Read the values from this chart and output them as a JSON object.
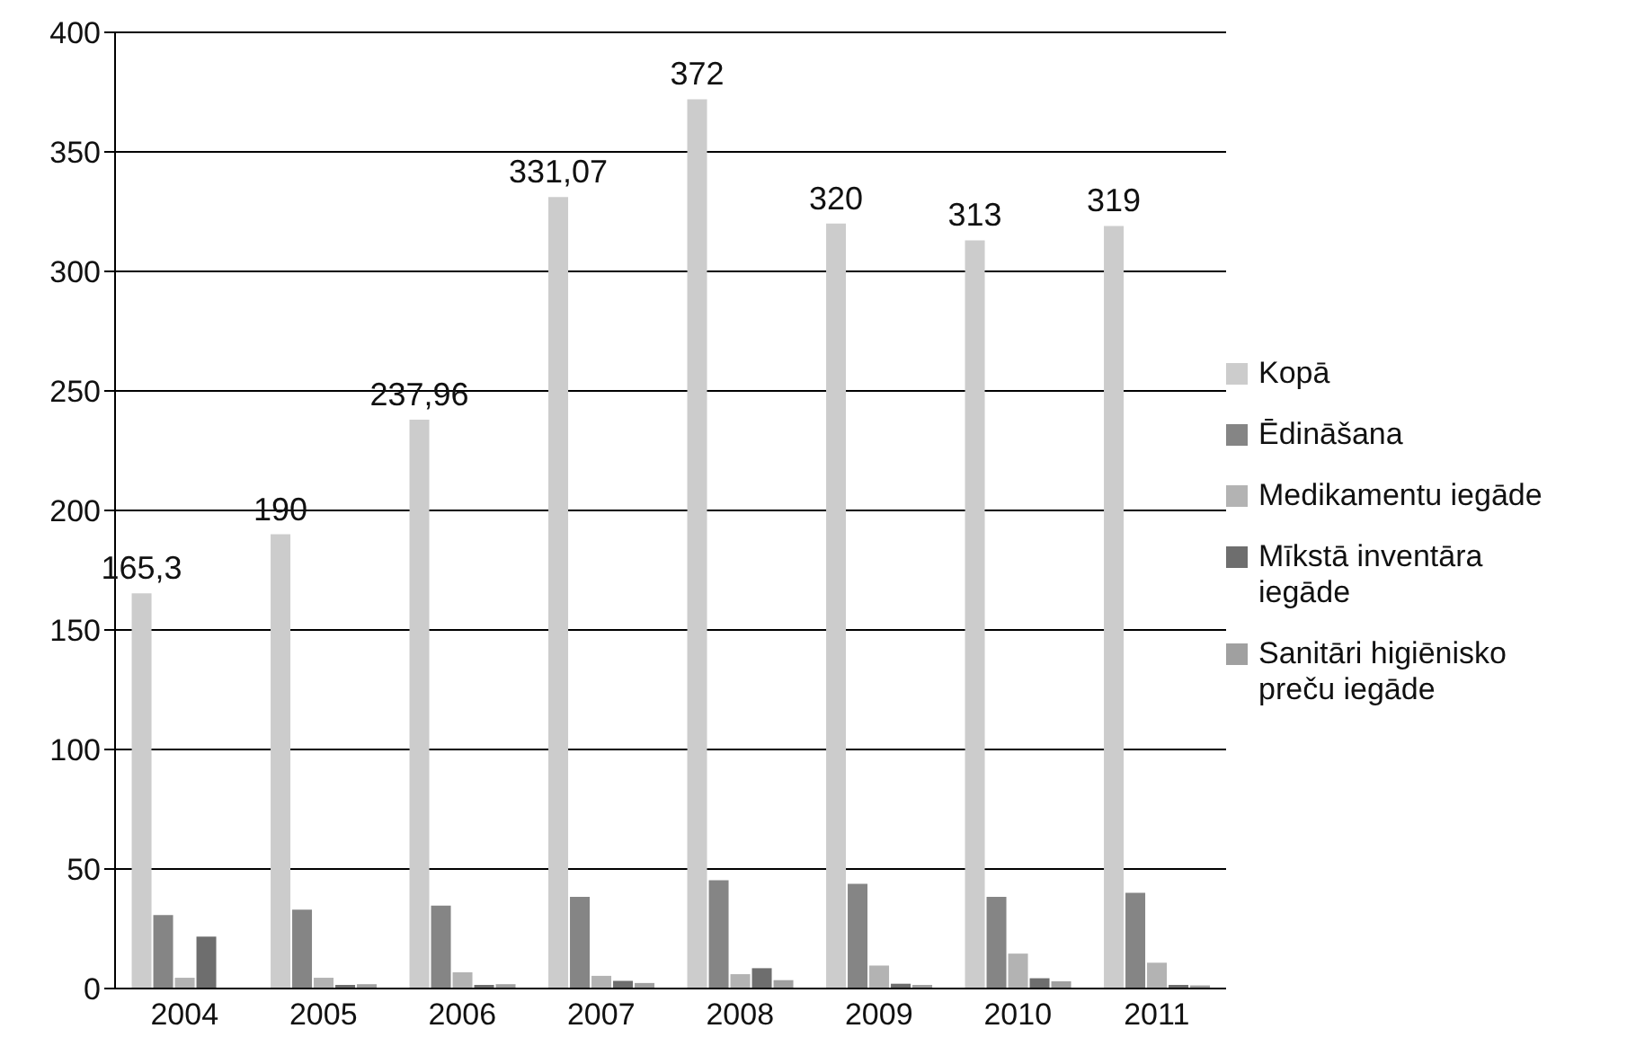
{
  "chart_data": {
    "type": "bar",
    "categories": [
      "2004",
      "2005",
      "2006",
      "2007",
      "2008",
      "2009",
      "2010",
      "2011"
    ],
    "series": [
      {
        "name": "Kopā",
        "color": "#cccccc",
        "values": [
          165.3,
          190,
          237.96,
          331.07,
          372,
          320,
          313,
          319
        ],
        "value_labels": [
          "165,3",
          "190",
          "237,96",
          "331,07",
          "372",
          "320",
          "313",
          "319"
        ]
      },
      {
        "name": "Ēdināšana",
        "color": "#858585",
        "values": [
          30.7,
          33,
          34.7,
          38.3,
          45.3,
          43.8,
          38.3,
          40
        ]
      },
      {
        "name": "Medikamentu iegāde",
        "color": "#b3b3b3",
        "values": [
          4.5,
          4.5,
          6.8,
          5.3,
          6,
          9.6,
          14.6,
          10.8
        ]
      },
      {
        "name": "Mīkstā inventāra iegāde",
        "color": "#6e6e6e",
        "values": [
          21.7,
          1.5,
          1.5,
          3.2,
          8.5,
          2,
          4.3,
          1.5
        ]
      },
      {
        "name": "Sanitāri higiēnisko preču iegāde",
        "color": "#a0a0a0",
        "values": [
          0,
          1.8,
          1.8,
          2.3,
          3.5,
          1.5,
          3,
          1.3
        ]
      }
    ],
    "ylim": [
      0,
      400
    ],
    "yticks": [
      0,
      50,
      100,
      150,
      200,
      250,
      300,
      350,
      400
    ],
    "grid": "y",
    "legend": "right"
  }
}
